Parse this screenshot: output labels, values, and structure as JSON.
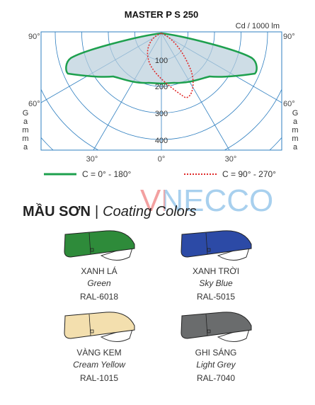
{
  "diagram": {
    "title": "MASTER P  S 250",
    "unit": "Cd / 1000 lm",
    "angles": {
      "top_left": "90°",
      "top_right": "90°",
      "left": "60°",
      "right": "60°",
      "bottom_left": "30°",
      "bottom": "0°",
      "bottom_right": "30°"
    },
    "radial": [
      "100",
      "200",
      "300",
      "400"
    ],
    "axis_label": "Gamma",
    "legend": [
      {
        "label": "C = 0° - 180°",
        "color": "#1ea04e"
      },
      {
        "label": "C = 90° - 270°",
        "color": "#e02a2a"
      }
    ]
  },
  "watermark": "VNECCO",
  "heading": {
    "vi": "MẦU SƠN",
    "sep": "|",
    "en": "Coating Colors"
  },
  "colors": [
    {
      "vi": "XANH LÁ",
      "en": "Green",
      "code": "RAL-6018",
      "color": "#2e8b3a"
    },
    {
      "vi": "XANH TRỜI",
      "en": "Sky Blue",
      "code": "RAL-5015",
      "color": "#2c4aa6"
    },
    {
      "vi": "VÀNG KEM",
      "en": "Cream Yellow",
      "code": "RAL-1015",
      "color": "#f3dfae"
    },
    {
      "vi": "GHI SÁNG",
      "en": "Light Grey",
      "code": "RAL-7040",
      "color": "#6a6c6d"
    }
  ]
}
